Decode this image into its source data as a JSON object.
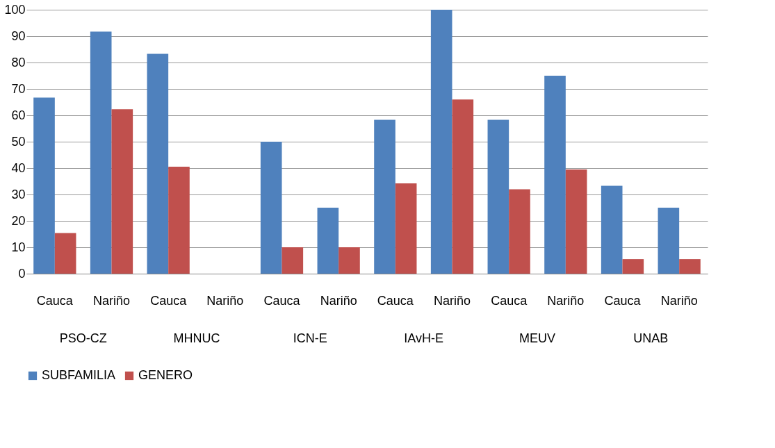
{
  "chart_data": {
    "type": "bar",
    "categories": [
      "Cauca",
      "Nariño",
      "Cauca",
      "Nariño",
      "Cauca",
      "Nariño",
      "Cauca",
      "Nariño",
      "Cauca",
      "Nariño",
      "Cauca",
      "Nariño"
    ],
    "series": [
      {
        "name": "SUBFAMILIA",
        "color": "#4f81bd",
        "values": [
          66.7,
          91.7,
          83.3,
          0,
          50,
          25,
          58.3,
          100,
          58.3,
          75,
          33.3,
          25
        ]
      },
      {
        "name": "GENERO",
        "color": "#c0504d",
        "values": [
          15.4,
          62.3,
          40.5,
          0,
          10,
          10,
          34.2,
          66,
          32,
          39.5,
          5.5,
          5.5
        ]
      }
    ],
    "annotations": [
      "PSO-CZ",
      "MHNUC",
      "ICN-E",
      "IAvH-E",
      "MEUV",
      "UNAB"
    ],
    "ylim": [
      0,
      100
    ],
    "yticks": [
      0,
      10,
      20,
      30,
      40,
      50,
      60,
      70,
      80,
      90,
      100
    ],
    "grid": "y",
    "legend": "bottom"
  }
}
